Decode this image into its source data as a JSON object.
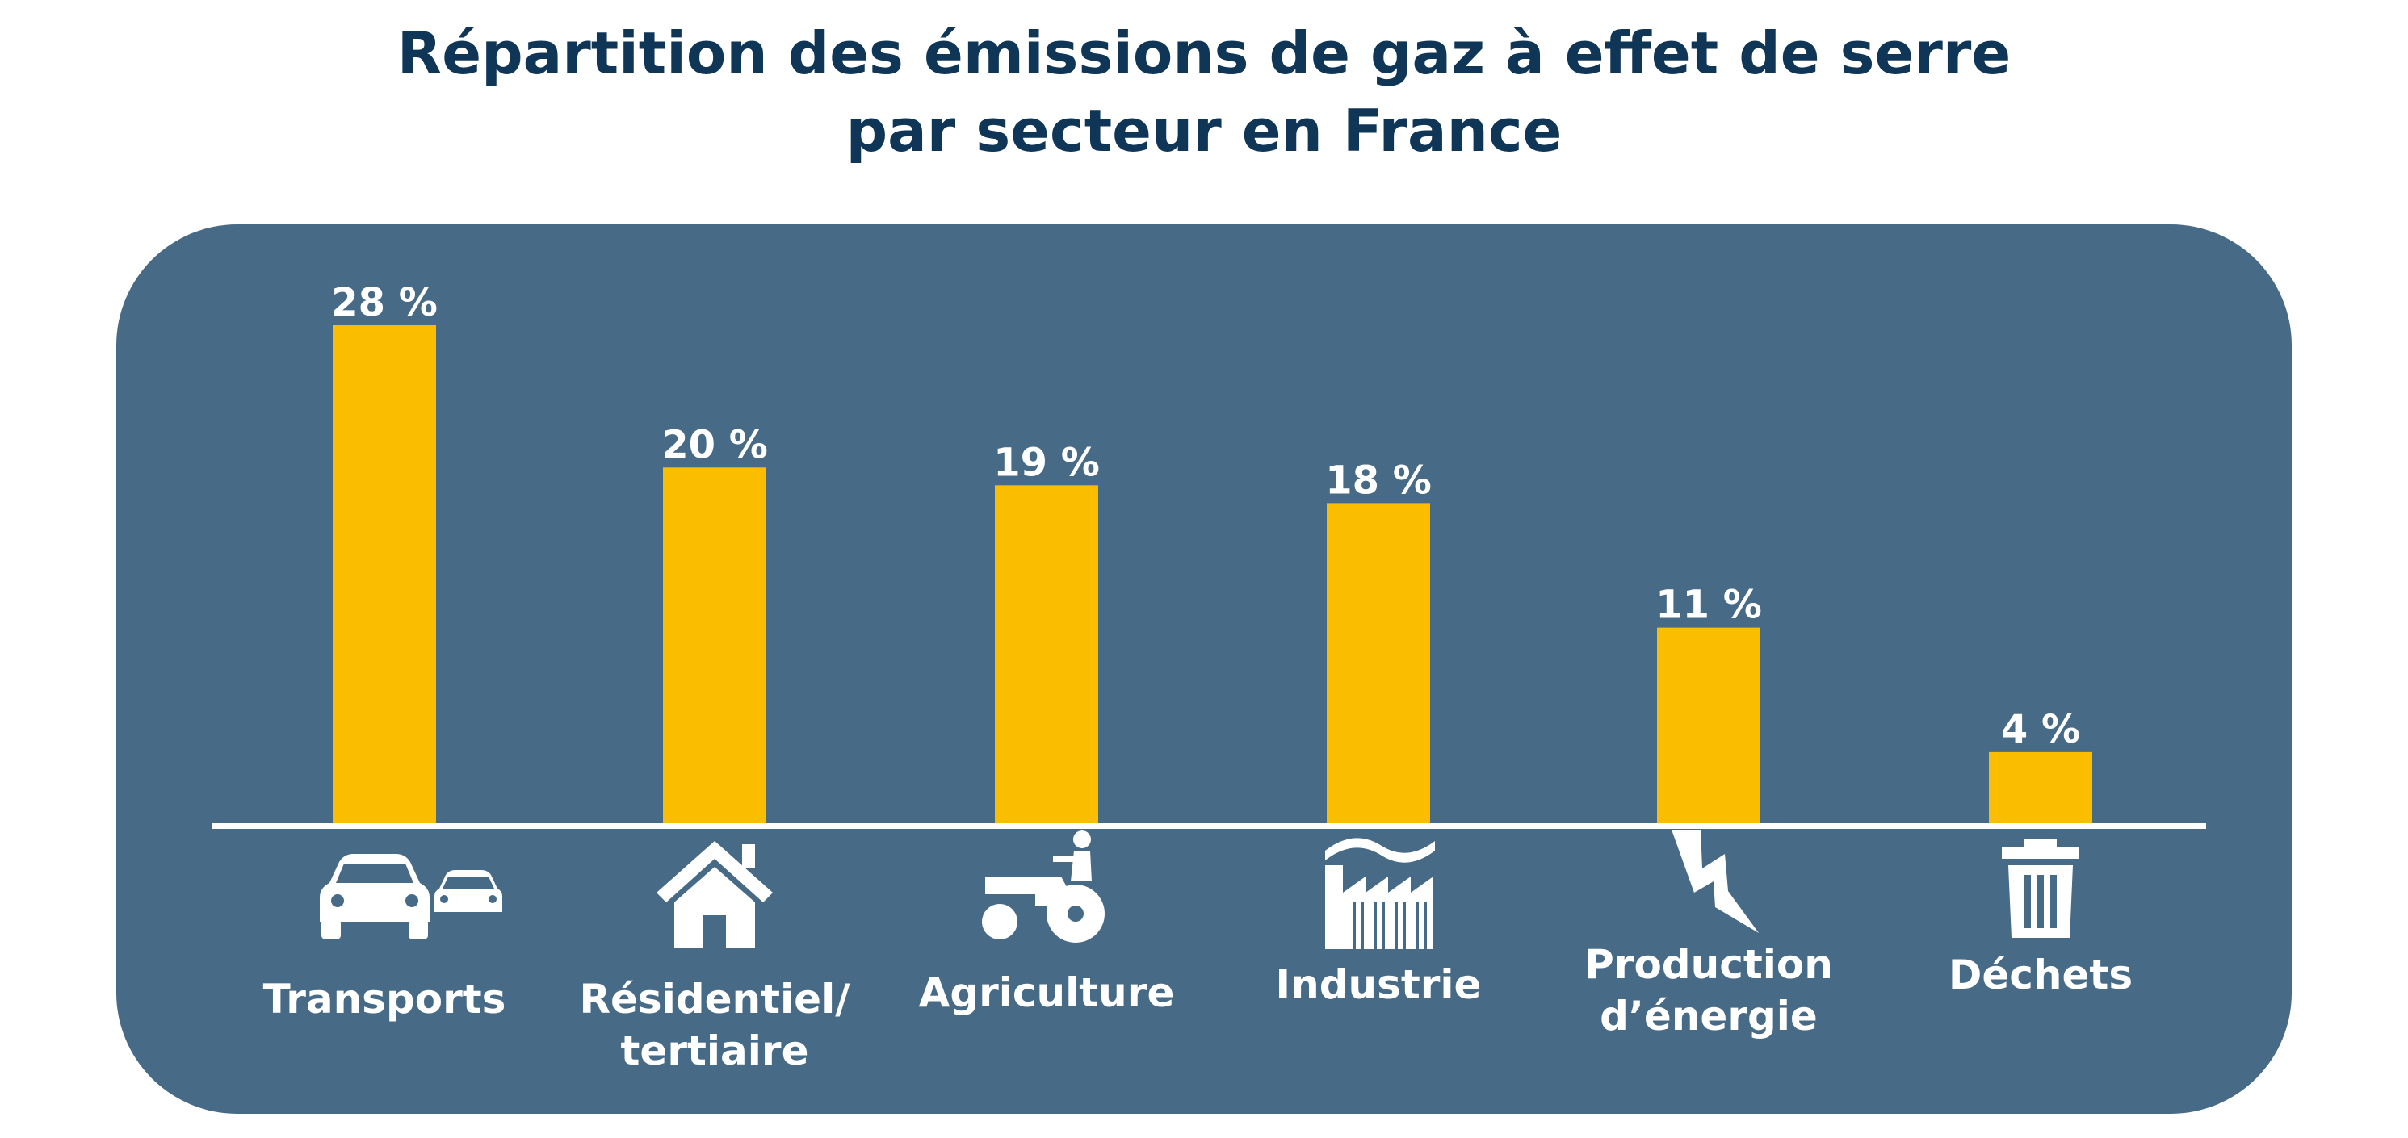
{
  "title": {
    "line1": "Répartition des émissions de gaz à effet de serre",
    "line2": "par secteur en France"
  },
  "colors": {
    "title": "#0f3557",
    "panel": "#476a87",
    "bar": "#fbbd00",
    "baseline": "#ffffff",
    "text": "#ffffff"
  },
  "chart_data": {
    "type": "bar",
    "title": "Répartition des émissions de gaz à effet de serre par secteur en France",
    "categories": [
      "Transports",
      "Résidentiel/ tertiaire",
      "Agriculture",
      "Industrie",
      "Production d’énergie",
      "Déchets"
    ],
    "category_lines": [
      [
        "Transports"
      ],
      [
        "Résidentiel/",
        "tertiaire"
      ],
      [
        "Agriculture"
      ],
      [
        "Industrie"
      ],
      [
        "Production",
        "d’énergie"
      ],
      [
        "Déchets"
      ]
    ],
    "values": [
      28,
      20,
      19,
      18,
      11,
      4
    ],
    "value_labels": [
      "28 %",
      "20 %",
      "19 %",
      "18 %",
      "11 %",
      "4 %"
    ],
    "icons": [
      "cars-icon",
      "house-icon",
      "tractor-icon",
      "factory-icon",
      "lightning-icon",
      "trash-icon"
    ],
    "unit": "%",
    "ylim": [
      0,
      28
    ],
    "grid": false,
    "legend": "none"
  }
}
